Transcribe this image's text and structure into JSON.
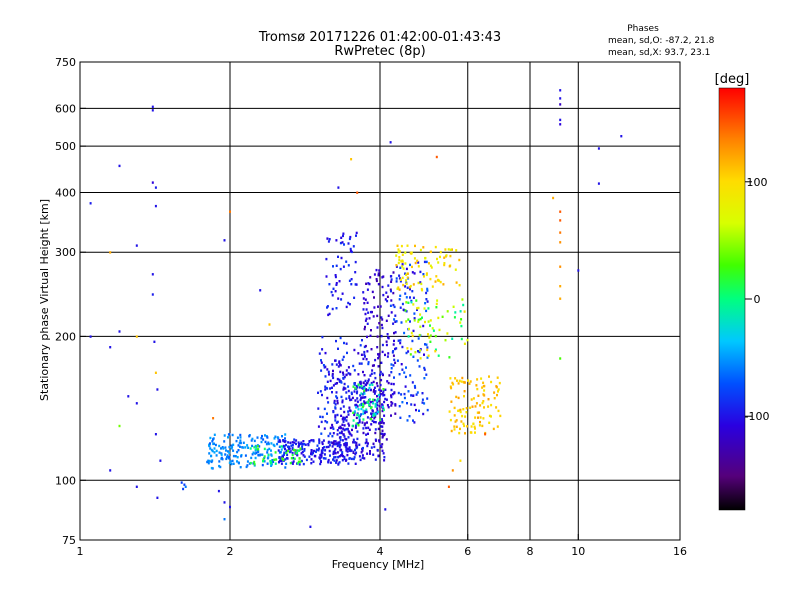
{
  "chart_data": {
    "type": "scatter",
    "title": "Tromsø 20171226 01:42:00-01:43:43",
    "subtitle": "RwPretec (8p)",
    "xlabel": "Frequency [MHz]",
    "ylabel": "Stationary phase Virtual Height [km]",
    "x_scale": "log",
    "y_scale": "log",
    "xlim": [
      1,
      16
    ],
    "ylim": [
      75,
      750
    ],
    "x_ticks": [
      "1",
      "2",
      "4",
      "6",
      "8",
      "10",
      "16"
    ],
    "x_tick_values": [
      1,
      2,
      4,
      6,
      8,
      10,
      16
    ],
    "x_gridlines": [
      2,
      4,
      6,
      8,
      10
    ],
    "y_ticks": [
      "75",
      "100",
      "200",
      "300",
      "400",
      "500",
      "600",
      "750"
    ],
    "y_tick_values": [
      75,
      100,
      200,
      300,
      400,
      500,
      600,
      750
    ],
    "y_gridlines": [
      100,
      200,
      300,
      400,
      500,
      600
    ],
    "grid": true,
    "phases": {
      "title": "Phases",
      "line_o": "mean, sd,O: -87.2, 21.8",
      "line_x": "mean, sd,X:  93.7, 23.1"
    },
    "colorbar": {
      "label": "[deg]",
      "range": [
        -180,
        180
      ],
      "ticks": [
        "100",
        "0",
        "-100"
      ],
      "tick_values": [
        100,
        0,
        -100
      ],
      "colormap": "rainbow (black-purple-blue-cyan-green-yellow-orange-red)"
    },
    "clusters": [
      {
        "x": [
          1.8,
          2.6
        ],
        "y": [
          106,
          125
        ],
        "n": 180,
        "phase": [
          -70,
          -45
        ],
        "seed": 11
      },
      {
        "x": [
          2.5,
          3.6
        ],
        "y": [
          108,
          122
        ],
        "n": 200,
        "phase": [
          -110,
          -80
        ],
        "seed": 12
      },
      {
        "x": [
          3.2,
          4.1
        ],
        "y": [
          110,
          170
        ],
        "n": 230,
        "phase": [
          -120,
          -90
        ],
        "seed": 13
      },
      {
        "x": [
          3.0,
          3.8
        ],
        "y": [
          115,
          200
        ],
        "n": 160,
        "phase": [
          -115,
          -75
        ],
        "seed": 14
      },
      {
        "x": [
          3.7,
          4.3
        ],
        "y": [
          120,
          280
        ],
        "n": 170,
        "phase": [
          -130,
          -95
        ],
        "seed": 15
      },
      {
        "x": [
          4.2,
          5.0
        ],
        "y": [
          130,
          300
        ],
        "n": 140,
        "phase": [
          -110,
          -60
        ],
        "seed": 16
      },
      {
        "x": [
          4.3,
          5.8
        ],
        "y": [
          250,
          310
        ],
        "n": 90,
        "phase": [
          70,
          120
        ],
        "seed": 17
      },
      {
        "x": [
          5.5,
          7.0
        ],
        "y": [
          125,
          165
        ],
        "n": 110,
        "phase": [
          90,
          125
        ],
        "seed": 18
      },
      {
        "x": [
          4.5,
          6.0
        ],
        "y": [
          180,
          240
        ],
        "n": 70,
        "phase": [
          -20,
          110
        ],
        "seed": 19
      },
      {
        "x": [
          3.1,
          3.6
        ],
        "y": [
          220,
          330
        ],
        "n": 60,
        "phase": [
          -110,
          -80
        ],
        "seed": 20
      },
      {
        "x": [
          3.5,
          4.1
        ],
        "y": [
          130,
          160
        ],
        "n": 60,
        "phase": [
          -40,
          30
        ],
        "seed": 21
      },
      {
        "x": [
          2.2,
          2.8
        ],
        "y": [
          108,
          118
        ],
        "n": 40,
        "phase": [
          -5,
          35
        ],
        "seed": 22
      }
    ],
    "points": [
      {
        "x": 1.4,
        "y": 605,
        "phase": -100
      },
      {
        "x": 1.4,
        "y": 595,
        "phase": -100
      },
      {
        "x": 1.4,
        "y": 420,
        "phase": -110
      },
      {
        "x": 1.42,
        "y": 410,
        "phase": -95
      },
      {
        "x": 1.42,
        "y": 375,
        "phase": -100
      },
      {
        "x": 1.4,
        "y": 270,
        "phase": -100
      },
      {
        "x": 1.4,
        "y": 245,
        "phase": -95
      },
      {
        "x": 1.41,
        "y": 195,
        "phase": -100
      },
      {
        "x": 1.42,
        "y": 168,
        "phase": 110
      },
      {
        "x": 1.43,
        "y": 155,
        "phase": -100
      },
      {
        "x": 1.42,
        "y": 125,
        "phase": -100
      },
      {
        "x": 1.45,
        "y": 110,
        "phase": -100
      },
      {
        "x": 1.43,
        "y": 92,
        "phase": -100
      },
      {
        "x": 1.2,
        "y": 455,
        "phase": -100
      },
      {
        "x": 1.05,
        "y": 380,
        "phase": -95
      },
      {
        "x": 1.15,
        "y": 300,
        "phase": 120
      },
      {
        "x": 1.3,
        "y": 310,
        "phase": -100
      },
      {
        "x": 1.2,
        "y": 205,
        "phase": -100
      },
      {
        "x": 1.3,
        "y": 200,
        "phase": 110
      },
      {
        "x": 1.15,
        "y": 190,
        "phase": -100
      },
      {
        "x": 1.25,
        "y": 150,
        "phase": -100
      },
      {
        "x": 1.3,
        "y": 145,
        "phase": -100
      },
      {
        "x": 1.2,
        "y": 130,
        "phase": 40
      },
      {
        "x": 1.15,
        "y": 105,
        "phase": -100
      },
      {
        "x": 1.3,
        "y": 97,
        "phase": -100
      },
      {
        "x": 1.05,
        "y": 200,
        "phase": -100
      },
      {
        "x": 1.6,
        "y": 99,
        "phase": -80
      },
      {
        "x": 1.62,
        "y": 98,
        "phase": -80
      },
      {
        "x": 1.63,
        "y": 97,
        "phase": -60
      },
      {
        "x": 1.61,
        "y": 96,
        "phase": -80
      },
      {
        "x": 1.9,
        "y": 95,
        "phase": -100
      },
      {
        "x": 1.95,
        "y": 90,
        "phase": -100
      },
      {
        "x": 2.0,
        "y": 88,
        "phase": -100
      },
      {
        "x": 1.95,
        "y": 83,
        "phase": -60
      },
      {
        "x": 1.85,
        "y": 135,
        "phase": 140
      },
      {
        "x": 2.0,
        "y": 365,
        "phase": 140
      },
      {
        "x": 1.95,
        "y": 318,
        "phase": -100
      },
      {
        "x": 2.3,
        "y": 250,
        "phase": -100
      },
      {
        "x": 2.4,
        "y": 212,
        "phase": 110
      },
      {
        "x": 2.9,
        "y": 80,
        "phase": -100
      },
      {
        "x": 3.5,
        "y": 470,
        "phase": 110
      },
      {
        "x": 3.6,
        "y": 400,
        "phase": 150
      },
      {
        "x": 3.3,
        "y": 410,
        "phase": -100
      },
      {
        "x": 4.2,
        "y": 510,
        "phase": -100
      },
      {
        "x": 4.1,
        "y": 87,
        "phase": -100
      },
      {
        "x": 5.2,
        "y": 475,
        "phase": 150
      },
      {
        "x": 5.5,
        "y": 97,
        "phase": 150
      },
      {
        "x": 5.6,
        "y": 105,
        "phase": 130
      },
      {
        "x": 5.8,
        "y": 110,
        "phase": 100
      },
      {
        "x": 6.5,
        "y": 125,
        "phase": 150
      },
      {
        "x": 8.9,
        "y": 390,
        "phase": 120
      },
      {
        "x": 9.2,
        "y": 655,
        "phase": -100
      },
      {
        "x": 9.2,
        "y": 630,
        "phase": -100
      },
      {
        "x": 9.2,
        "y": 612,
        "phase": -120
      },
      {
        "x": 9.2,
        "y": 568,
        "phase": -100
      },
      {
        "x": 9.2,
        "y": 556,
        "phase": -110
      },
      {
        "x": 9.2,
        "y": 365,
        "phase": 150
      },
      {
        "x": 9.2,
        "y": 350,
        "phase": 150
      },
      {
        "x": 9.2,
        "y": 330,
        "phase": 140
      },
      {
        "x": 9.2,
        "y": 315,
        "phase": 130
      },
      {
        "x": 9.2,
        "y": 280,
        "phase": 130
      },
      {
        "x": 9.2,
        "y": 255,
        "phase": 120
      },
      {
        "x": 9.2,
        "y": 240,
        "phase": 120
      },
      {
        "x": 9.2,
        "y": 180,
        "phase": 30
      },
      {
        "x": 10.0,
        "y": 275,
        "phase": -100
      },
      {
        "x": 11.0,
        "y": 495,
        "phase": -100
      },
      {
        "x": 11.0,
        "y": 418,
        "phase": -100
      },
      {
        "x": 12.2,
        "y": 525,
        "phase": -100
      }
    ]
  }
}
